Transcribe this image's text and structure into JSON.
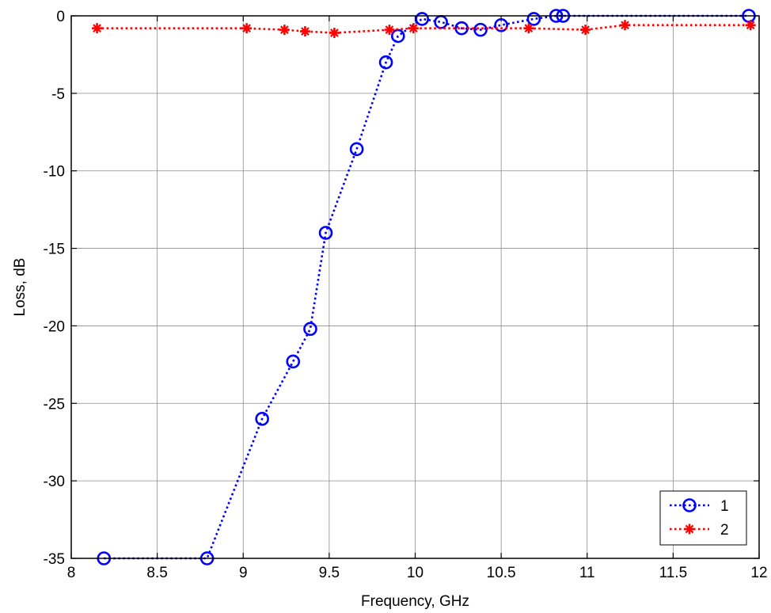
{
  "chart_data": {
    "type": "line",
    "title": "",
    "xlabel": "Frequency, GHz",
    "ylabel": "Loss, dB",
    "xlim": [
      8,
      12
    ],
    "ylim": [
      -35,
      0
    ],
    "xticks": [
      8,
      8.5,
      9,
      9.5,
      10,
      10.5,
      11,
      11.5,
      12
    ],
    "yticks": [
      0,
      -5,
      -10,
      -15,
      -20,
      -25,
      -30,
      -35
    ],
    "xtick_labels": [
      "8",
      "8.5",
      "9",
      "9.5",
      "10",
      "10.5",
      "11",
      "11.5",
      "12"
    ],
    "ytick_labels": [
      "0",
      "-5",
      "-10",
      "-15",
      "-20",
      "-25",
      "-30",
      "-35"
    ],
    "grid": true,
    "legend_position": "bottom-right",
    "series": [
      {
        "name": "1",
        "color": "#0000ff",
        "marker": "circle",
        "line_style": "dotted",
        "x": [
          8.19,
          8.79,
          9.11,
          9.29,
          9.39,
          9.48,
          9.66,
          9.83,
          9.9,
          10.04,
          10.15,
          10.27,
          10.38,
          10.5,
          10.69,
          10.82,
          10.86,
          11.94
        ],
        "y": [
          -35.0,
          -35.0,
          -26.0,
          -22.3,
          -20.2,
          -14.0,
          -8.6,
          -3.0,
          -1.3,
          -0.2,
          -0.4,
          -0.8,
          -0.9,
          -0.6,
          -0.2,
          0.0,
          0.0,
          0.0
        ]
      },
      {
        "name": "2",
        "color": "#ff0000",
        "marker": "star",
        "line_style": "dotted",
        "x": [
          8.15,
          9.02,
          9.24,
          9.36,
          9.53,
          9.85,
          9.99,
          10.66,
          10.99,
          11.22,
          11.95
        ],
        "y": [
          -0.8,
          -0.8,
          -0.9,
          -1.0,
          -1.1,
          -0.9,
          -0.8,
          -0.8,
          -0.9,
          -0.6,
          -0.6
        ]
      }
    ]
  }
}
